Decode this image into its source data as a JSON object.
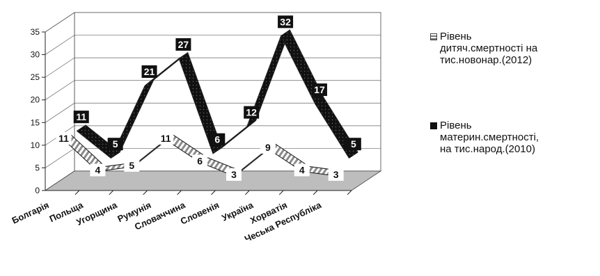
{
  "chart_data": {
    "type": "line",
    "categories": [
      "Болгарія",
      "Польща",
      "Угорщина",
      "Румунія",
      "Словаччина",
      "Словенія",
      "Україна",
      "Хорватія",
      "Чеська Республіка"
    ],
    "ylim": [
      0,
      35
    ],
    "yticks": [
      0,
      5,
      10,
      15,
      20,
      25,
      30,
      35
    ],
    "grid": true,
    "legend_position": "right",
    "series": [
      {
        "name": "Рівень дитяч.смертності на тис.новонар.(2012)",
        "values": [
          11,
          4,
          5,
          11,
          6,
          3,
          9,
          4,
          3
        ],
        "color": "#b9b9b9",
        "style": "ribbon-hatched"
      },
      {
        "name": "Рівень материн.смертності, на тис.народ.(2010)",
        "values": [
          11,
          5,
          21,
          27,
          6,
          12,
          32,
          17,
          5
        ],
        "color": "#111111",
        "style": "ribbon-dark"
      }
    ]
  },
  "legend": {
    "item1": "Рівень\nдитяч.смертності на\nтис.новонар.(2012)",
    "item2": "Рівень\nматерин.смертності,\nна тис.народ.(2010)"
  },
  "colors": {
    "floor": "#bdbdbd",
    "series1": "#b9b9b9",
    "series2": "#111111"
  }
}
